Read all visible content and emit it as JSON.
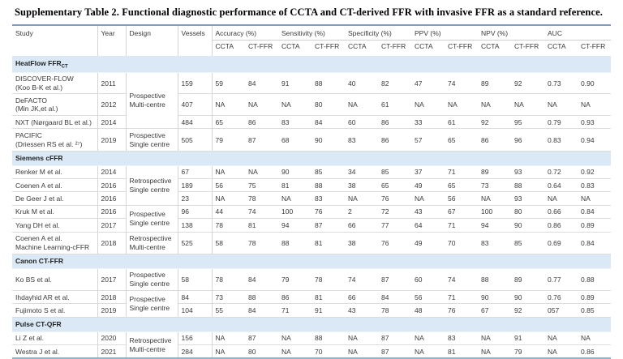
{
  "title": "Supplementary Table 2. Functional diagnostic performance of CCTA and CT-derived FFR with invasive FFR as a standard reference.",
  "colors": {
    "section_band": "#dbe9f6",
    "table_top_border": "#7c9cc1",
    "table_bottom_border": "#8fb4c4",
    "row_divider": "#dcdcdc"
  },
  "table": {
    "columns": {
      "study": "Study",
      "year": "Year",
      "design": "Design",
      "vessels": "Vessels"
    },
    "group_columns": [
      "Accuracy (%)",
      "Sensitivity (%)",
      "Specificity (%)",
      "PPV (%)",
      "NPV (%)",
      "AUC"
    ],
    "sub_columns": [
      "CCTA",
      "CT-FFR"
    ],
    "sections": [
      {
        "name": "HeatFlow FFR",
        "sub": "CT",
        "rows": [
          {
            "study": "DISCOVER-FLOW\n(Koo B-K et al.)",
            "year": "2011",
            "design": "Prospective\nMulti-centre",
            "design_rowspan": 3,
            "vessels": "159",
            "values": [
              "59",
              "84",
              "91",
              "88",
              "40",
              "82",
              "47",
              "74",
              "89",
              "92",
              "0.73",
              "0.90"
            ]
          },
          {
            "study": "DeFACTO\n(Min JK,et al.)",
            "year": "2012",
            "design": null,
            "vessels": "407",
            "values": [
              "NA",
              "NA",
              "NA",
              "80",
              "NA",
              "61",
              "NA",
              "NA",
              "NA",
              "NA",
              "NA",
              "NA"
            ]
          },
          {
            "study": "NXT (Nørgaard BL et al.)",
            "year": "2014",
            "design": null,
            "vessels": "484",
            "values": [
              "65",
              "86",
              "83",
              "84",
              "60",
              "86",
              "33",
              "61",
              "92",
              "95",
              "0.79",
              "0.93"
            ]
          },
          {
            "study": "PACIFIC\n(Driessen RS et al. ²⁷)",
            "year": "2019",
            "design": "Prospective\nSingle centre",
            "design_rowspan": 1,
            "vessels": "505",
            "values": [
              "79",
              "87",
              "68",
              "90",
              "83",
              "86",
              "57",
              "65",
              "86",
              "96",
              "0.83",
              "0.94"
            ]
          }
        ]
      },
      {
        "name": "Siemens cFFR",
        "sub": "",
        "rows": [
          {
            "study": "Renker M et al.",
            "year": "2014",
            "design": "Retrospective\nSingle centre",
            "design_rowspan": 3,
            "vessels": "67",
            "values": [
              "NA",
              "NA",
              "90",
              "85",
              "34",
              "85",
              "37",
              "71",
              "89",
              "93",
              "0.72",
              "0.92"
            ]
          },
          {
            "study": "Coenen A et al.",
            "year": "2016",
            "design": null,
            "vessels": "189",
            "values": [
              "56",
              "75",
              "81",
              "88",
              "38",
              "65",
              "49",
              "65",
              "73",
              "88",
              "0.64",
              "0.83"
            ]
          },
          {
            "study": "De Geer J et al.",
            "year": "2016",
            "design": null,
            "vessels": "23",
            "values": [
              "NA",
              "78",
              "NA",
              "83",
              "NA",
              "76",
              "NA",
              "56",
              "NA",
              "93",
              "NA",
              "NA"
            ]
          },
          {
            "study": "Kruk M et al.",
            "year": "2016",
            "design": "Prospective\nSingle centre",
            "design_rowspan": 2,
            "vessels": "96",
            "values": [
              "44",
              "74",
              "100",
              "76",
              "2",
              "72",
              "43",
              "67",
              "100",
              "80",
              "0.66",
              "0.84"
            ]
          },
          {
            "study": "Yang DH et al.",
            "year": "2017",
            "design": null,
            "vessels": "138",
            "values": [
              "78",
              "81",
              "94",
              "87",
              "66",
              "77",
              "64",
              "71",
              "94",
              "90",
              "0.86",
              "0.89"
            ]
          },
          {
            "study": "Coenen A et al.\nMachine Learning-cFFR",
            "year": "2018",
            "design": "Retrospective\nMulti-centre",
            "design_rowspan": 1,
            "vessels": "525",
            "values": [
              "58",
              "78",
              "88",
              "81",
              "38",
              "76",
              "49",
              "70",
              "83",
              "85",
              "0.69",
              "0.84"
            ]
          }
        ]
      },
      {
        "name": "Canon CT-FFR",
        "sub": "",
        "rows": [
          {
            "study": "Ko BS et al.",
            "year": "2017",
            "design": "Prospective\nSingle centre",
            "design_rowspan": 1,
            "vessels": "58",
            "values": [
              "78",
              "84",
              "79",
              "78",
              "74",
              "87",
              "60",
              "74",
              "88",
              "89",
              "0.77",
              "0.88"
            ]
          },
          {
            "study": "Ihdayhid AR et al.",
            "year": "2018",
            "design": "Prospective\nSingle centre",
            "design_rowspan": 2,
            "vessels": "84",
            "values": [
              "73",
              "88",
              "86",
              "81",
              "66",
              "84",
              "56",
              "71",
              "90",
              "90",
              "0.76",
              "0.89"
            ]
          },
          {
            "study": "Fujimoto S et al.",
            "year": "2019",
            "design": null,
            "vessels": "104",
            "values": [
              "55",
              "84",
              "71",
              "91",
              "43",
              "78",
              "48",
              "76",
              "67",
              "92",
              "057",
              "0.85"
            ]
          }
        ]
      },
      {
        "name": "Pulse CT-QFR",
        "sub": "",
        "rows": [
          {
            "study": "Li Z et al.",
            "year": "2020",
            "design": "Retrospective\nMulti-centre",
            "design_rowspan": 2,
            "vessels": "156",
            "values": [
              "NA",
              "87",
              "NA",
              "88",
              "NA",
              "87",
              "NA",
              "83",
              "NA",
              "91",
              "NA",
              "NA"
            ]
          },
          {
            "study": "Westra J et al.",
            "year": "2021",
            "design": null,
            "vessels": "284",
            "values": [
              "NA",
              "80",
              "NA",
              "70",
              "NA",
              "87",
              "NA",
              "81",
              "NA",
              "79",
              "NA",
              "0.86"
            ]
          }
        ]
      }
    ]
  }
}
